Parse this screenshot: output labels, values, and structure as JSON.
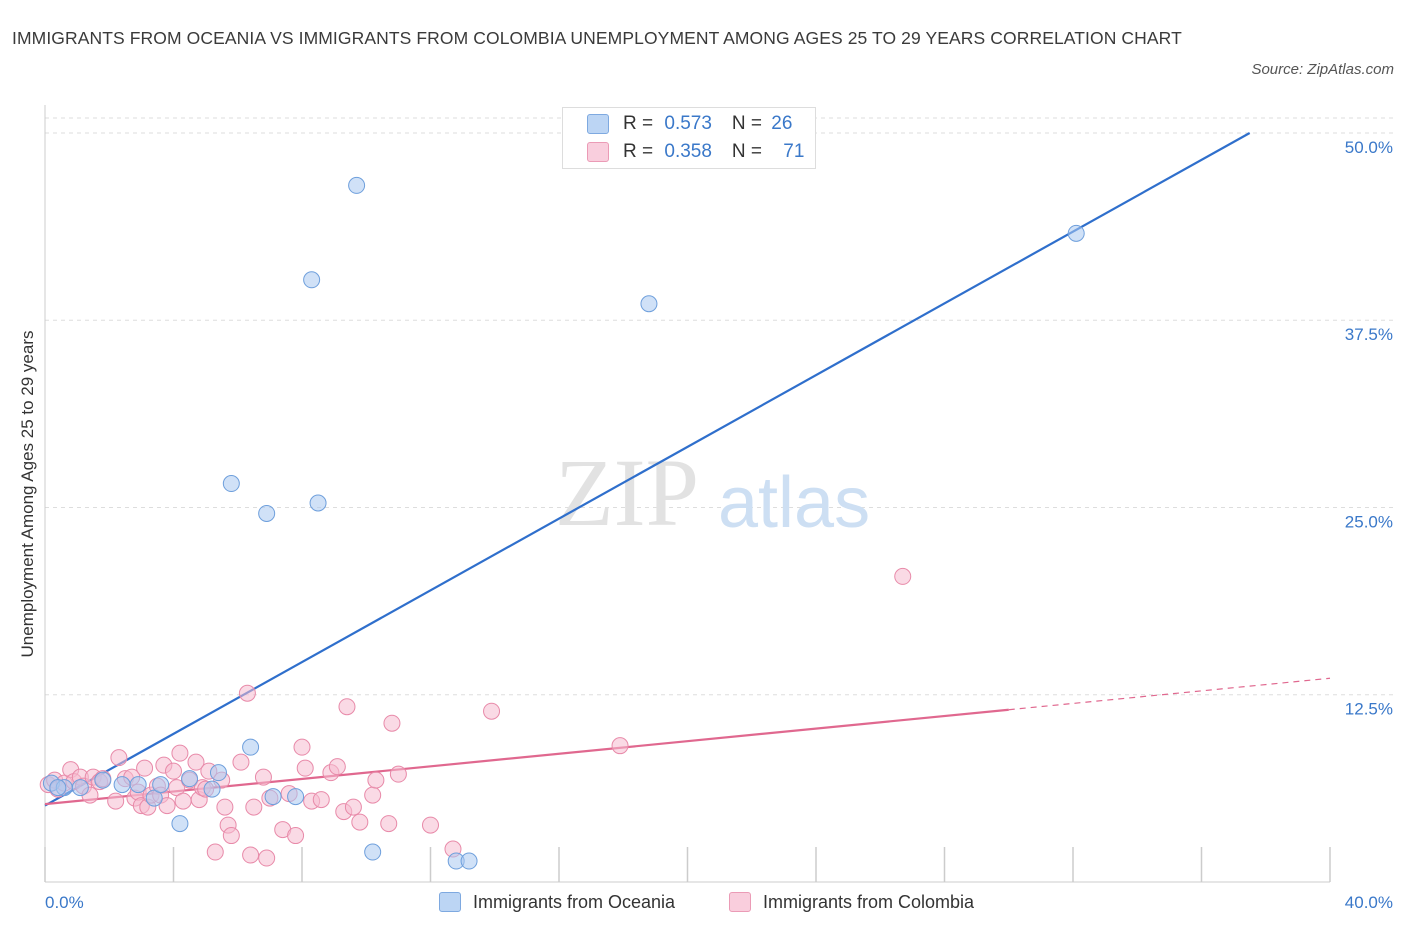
{
  "title": "IMMIGRANTS FROM OCEANIA VS IMMIGRANTS FROM COLOMBIA UNEMPLOYMENT AMONG AGES 25 TO 29 YEARS CORRELATION CHART",
  "source": "Source: ZipAtlas.com",
  "watermark": {
    "zip": "ZIP",
    "atlas": "atlas"
  },
  "colors": {
    "oceania_fill": "#aac8f0",
    "oceania_stroke": "#6e9fdc",
    "oceania_line": "#2f6fcc",
    "colombia_fill": "#f6bcd0",
    "colombia_stroke": "#e88aa9",
    "colombia_line": "#e0688f",
    "axis_value": "#3a78c9",
    "grid": "#dddddd"
  },
  "legend": {
    "oceania": {
      "r_label": "R = ",
      "r_value": "0.573",
      "n_label": "N = ",
      "n_value": "26"
    },
    "colombia": {
      "r_label": "R = ",
      "r_value": "0.358",
      "n_label": "N = ",
      "n_value": "71"
    }
  },
  "chart_data": {
    "type": "scatter",
    "title": "IMMIGRANTS FROM OCEANIA VS IMMIGRANTS FROM COLOMBIA UNEMPLOYMENT AMONG AGES 25 TO 29 YEARS CORRELATION CHART",
    "xlabel": "",
    "ylabel": "Unemployment Among Ages 25 to 29 years",
    "xlim": [
      0,
      40
    ],
    "ylim": [
      0,
      51
    ],
    "x_tick_labels": [
      {
        "value": 0,
        "label": "0.0%"
      },
      {
        "value": 40,
        "label": "40.0%"
      }
    ],
    "y_tick_labels": [
      {
        "value": 12.5,
        "label": "12.5%"
      },
      {
        "value": 25,
        "label": "25.0%"
      },
      {
        "value": 37.5,
        "label": "37.5%"
      },
      {
        "value": 50,
        "label": "50.0%"
      }
    ],
    "legend_position": "top-center",
    "series": [
      {
        "name": "Immigrants from Oceania",
        "R": 0.573,
        "N": 26,
        "trend": {
          "x": [
            0,
            37.5
          ],
          "y": [
            5.1,
            50.0
          ],
          "solid_to": 37.5
        },
        "points": [
          [
            0.2,
            6.6
          ],
          [
            0.6,
            6.3
          ],
          [
            1.1,
            6.3
          ],
          [
            1.8,
            6.8
          ],
          [
            2.4,
            6.5
          ],
          [
            2.9,
            6.5
          ],
          [
            3.4,
            5.6
          ],
          [
            3.6,
            6.5
          ],
          [
            4.2,
            3.9
          ],
          [
            4.5,
            6.9
          ],
          [
            5.2,
            6.2
          ],
          [
            5.4,
            7.3
          ],
          [
            5.8,
            26.6
          ],
          [
            6.4,
            9.0
          ],
          [
            6.9,
            24.6
          ],
          [
            7.1,
            5.7
          ],
          [
            7.8,
            5.7
          ],
          [
            8.3,
            40.2
          ],
          [
            8.5,
            25.3
          ],
          [
            9.7,
            46.5
          ],
          [
            10.2,
            2.0
          ],
          [
            12.8,
            1.4
          ],
          [
            13.2,
            1.4
          ],
          [
            18.8,
            38.6
          ],
          [
            32.1,
            43.3
          ],
          [
            0.4,
            6.3
          ]
        ]
      },
      {
        "name": "Immigrants from Colombia",
        "R": 0.358,
        "N": 71,
        "trend": {
          "x": [
            0,
            40
          ],
          "y": [
            5.2,
            13.6
          ],
          "solid_to": 30
        },
        "points": [
          [
            0.1,
            6.5
          ],
          [
            0.3,
            6.8
          ],
          [
            0.4,
            6.2
          ],
          [
            0.6,
            6.6
          ],
          [
            0.8,
            7.5
          ],
          [
            0.9,
            6.7
          ],
          [
            1.1,
            7.0
          ],
          [
            1.2,
            6.4
          ],
          [
            1.4,
            5.8
          ],
          [
            1.5,
            7.0
          ],
          [
            1.7,
            6.7
          ],
          [
            1.8,
            6.9
          ],
          [
            2.2,
            5.4
          ],
          [
            2.3,
            8.3
          ],
          [
            2.5,
            6.9
          ],
          [
            2.7,
            7.0
          ],
          [
            2.8,
            5.6
          ],
          [
            2.9,
            6.0
          ],
          [
            3.0,
            5.1
          ],
          [
            3.1,
            7.6
          ],
          [
            3.2,
            5.0
          ],
          [
            3.3,
            5.8
          ],
          [
            3.5,
            6.4
          ],
          [
            3.6,
            5.8
          ],
          [
            3.7,
            7.8
          ],
          [
            3.8,
            5.1
          ],
          [
            4.0,
            7.4
          ],
          [
            4.1,
            6.3
          ],
          [
            4.2,
            8.6
          ],
          [
            4.3,
            5.4
          ],
          [
            4.5,
            6.8
          ],
          [
            4.7,
            8.0
          ],
          [
            4.8,
            5.5
          ],
          [
            4.9,
            6.3
          ],
          [
            5.0,
            6.2
          ],
          [
            5.1,
            7.4
          ],
          [
            5.3,
            2.0
          ],
          [
            5.5,
            6.8
          ],
          [
            5.6,
            5.0
          ],
          [
            5.7,
            3.8
          ],
          [
            5.8,
            3.1
          ],
          [
            6.1,
            8.0
          ],
          [
            6.3,
            12.6
          ],
          [
            6.4,
            1.8
          ],
          [
            6.5,
            5.0
          ],
          [
            6.8,
            7.0
          ],
          [
            6.9,
            1.6
          ],
          [
            7.0,
            5.6
          ],
          [
            7.4,
            3.5
          ],
          [
            7.6,
            5.9
          ],
          [
            7.8,
            3.1
          ],
          [
            8.0,
            9.0
          ],
          [
            8.1,
            7.6
          ],
          [
            8.3,
            5.4
          ],
          [
            8.6,
            5.5
          ],
          [
            8.9,
            7.3
          ],
          [
            9.1,
            7.7
          ],
          [
            9.3,
            4.7
          ],
          [
            9.4,
            11.7
          ],
          [
            9.6,
            5.0
          ],
          [
            9.8,
            4.0
          ],
          [
            10.2,
            5.8
          ],
          [
            10.3,
            6.8
          ],
          [
            10.7,
            3.9
          ],
          [
            10.8,
            10.6
          ],
          [
            11.0,
            7.2
          ],
          [
            12.0,
            3.8
          ],
          [
            12.7,
            2.2
          ],
          [
            13.9,
            11.4
          ],
          [
            17.9,
            9.1
          ],
          [
            26.7,
            20.4
          ]
        ]
      }
    ]
  },
  "bottom_legend": {
    "oceania_label": "Immigrants from Oceania",
    "colombia_label": "Immigrants from Colombia"
  }
}
